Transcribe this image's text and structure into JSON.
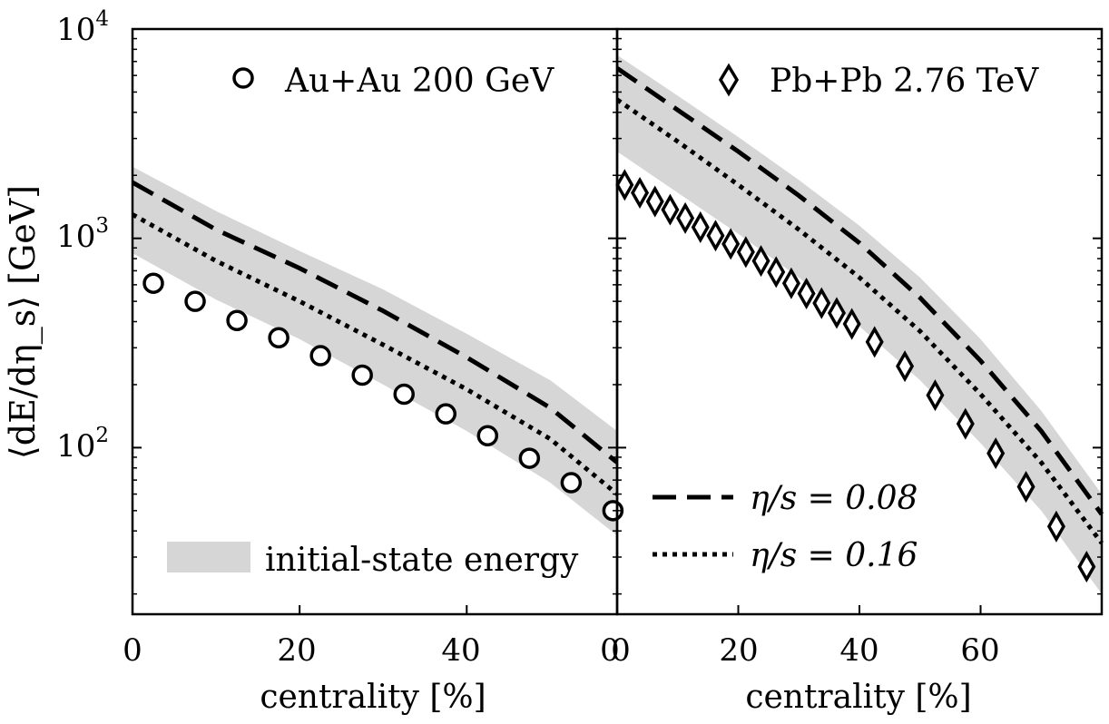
{
  "ylabel": "⟨dE/dη_s⟩ [GeV]",
  "y_ticks": [
    {
      "base": "10",
      "exp": "2",
      "value": 100
    },
    {
      "base": "10",
      "exp": "3",
      "value": 1000
    },
    {
      "base": "10",
      "exp": "4",
      "value": 10000
    }
  ],
  "legend_band": "initial-state energy",
  "legend_lines": [
    {
      "label": "η/s = 0.08",
      "style": "dashed"
    },
    {
      "label": "η/s = 0.16",
      "style": "dotted"
    }
  ],
  "colors": {
    "band": "#d6d6d6",
    "line": "#000000",
    "marker_fill": "#ffffff"
  },
  "chart_data": [
    {
      "type": "line",
      "legend": "Au+Au 200 GeV",
      "marker": "circle",
      "xlabel": "centrality [%]",
      "ylabel": "⟨dE/dη_s⟩ [GeV]",
      "yscale": "log",
      "xlim": [
        0,
        58
      ],
      "ylim": [
        16,
        10000
      ],
      "x_ticks": [
        "0",
        "20",
        "40",
        "0"
      ],
      "x_tick_values": [
        0,
        20,
        40,
        58
      ],
      "series": [
        {
          "name": "Au+Au 200 GeV",
          "x": [
            2.5,
            7.5,
            12.5,
            17.5,
            22.5,
            27.5,
            32.5,
            37.5,
            42.5,
            47.5,
            52.5,
            57.5
          ],
          "y": [
            610,
            500,
            405,
            335,
            275,
            222,
            180,
            145,
            114,
            89,
            68,
            50
          ]
        },
        {
          "name": "η/s = 0.08",
          "x": [
            0,
            10,
            20,
            30,
            40,
            50,
            58
          ],
          "y": [
            1850,
            1100,
            720,
            450,
            270,
            155,
            85
          ]
        },
        {
          "name": "η/s = 0.16",
          "x": [
            0,
            10,
            20,
            30,
            40,
            50,
            58
          ],
          "y": [
            1300,
            780,
            500,
            310,
            190,
            110,
            60
          ]
        }
      ],
      "band": {
        "name": "initial-state energy",
        "x": [
          0,
          10,
          20,
          30,
          40,
          50,
          58
        ],
        "upper": [
          2200,
          1350,
          870,
          570,
          350,
          210,
          120
        ],
        "lower": [
          850,
          510,
          330,
          200,
          120,
          68,
          38
        ]
      }
    },
    {
      "type": "line",
      "legend": "Pb+Pb 2.76 TeV",
      "marker": "diamond",
      "xlabel": "centrality [%]",
      "yscale": "log",
      "xlim": [
        0,
        80
      ],
      "ylim": [
        16,
        10000
      ],
      "x_ticks": [
        "0",
        "20",
        "40",
        "60"
      ],
      "x_tick_values": [
        0,
        20,
        40,
        60
      ],
      "series": [
        {
          "name": "Pb+Pb 2.76 TeV",
          "x": [
            1.25,
            3.75,
            6.25,
            8.75,
            11.25,
            13.75,
            16.25,
            18.75,
            21.25,
            23.75,
            26.25,
            28.75,
            31.25,
            33.75,
            36.25,
            38.75,
            42.5,
            47.5,
            52.5,
            57.5,
            62.5,
            67.5,
            72.5,
            77.5
          ],
          "y": [
            1800,
            1650,
            1500,
            1370,
            1250,
            1130,
            1030,
            940,
            860,
            780,
            690,
            610,
            545,
            490,
            440,
            390,
            320,
            245,
            178,
            130,
            94,
            65,
            42,
            27
          ]
        },
        {
          "name": "η/s = 0.08",
          "x": [
            0,
            10,
            20,
            30,
            40,
            50,
            60,
            70,
            80
          ],
          "y": [
            6500,
            4100,
            2600,
            1600,
            950,
            520,
            260,
            120,
            48
          ]
        },
        {
          "name": "η/s = 0.16",
          "x": [
            0,
            10,
            20,
            30,
            40,
            50,
            60,
            70,
            80
          ],
          "y": [
            4600,
            2900,
            1800,
            1100,
            650,
            360,
            180,
            85,
            35
          ]
        }
      ],
      "band": {
        "name": "initial-state energy",
        "x": [
          0,
          10,
          20,
          30,
          40,
          50,
          60,
          70,
          80
        ],
        "upper": [
          7500,
          4800,
          3050,
          1900,
          1150,
          650,
          330,
          150,
          60
        ],
        "lower": [
          2600,
          1650,
          1050,
          650,
          380,
          210,
          105,
          50,
          20
        ]
      }
    }
  ]
}
